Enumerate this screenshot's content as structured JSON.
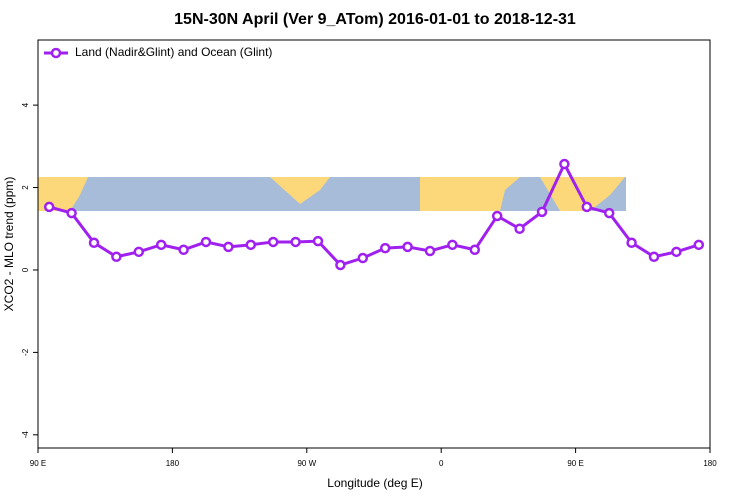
{
  "chart_data": {
    "type": "line",
    "title": "15N-30N April (Ver 9_ATom)   2016-01-01 to 2018-12-31",
    "x_label": "Longitude (deg E)",
    "y_label": "XCO2 - MLO trend (ppm)",
    "x": [
      97.5,
      112.5,
      127.5,
      142.5,
      157.5,
      172.5,
      187.5,
      202.5,
      217.5,
      232.5,
      247.5,
      262.5,
      277.5,
      292.5,
      307.5,
      322.5,
      337.5,
      352.5,
      367.5,
      382.5,
      397.5,
      412.5,
      427.5,
      442.5,
      457.5,
      472.5,
      487.5,
      502.5,
      517.5,
      532.5
    ],
    "series": [
      {
        "name": "Land (Nadir&Glint) and Ocean (Glint)",
        "color": "#a020f0",
        "values": [
          1.53,
          1.38,
          0.66,
          0.32,
          0.44,
          0.61,
          0.49,
          0.68,
          0.56,
          0.61,
          0.68,
          0.68,
          0.7,
          0.12,
          0.29,
          0.53,
          0.56,
          0.46,
          0.61,
          0.49,
          1.31,
          1.0,
          1.41,
          2.57,
          1.53,
          1.38,
          0.66,
          0.32,
          0.44,
          0.61
        ]
      }
    ],
    "xlim": [
      90,
      540
    ],
    "xticks": [
      {
        "value": 90,
        "label": "90 E"
      },
      180,
      {
        "value": 270,
        "label": "90 W"
      },
      {
        "value": 360,
        "label": "0"
      },
      {
        "value": 450,
        "label": "90 E"
      },
      {
        "value": 540,
        "label": "180"
      }
    ],
    "ylim": [
      -4.32,
      5.58
    ],
    "yticks": [
      -4,
      -2,
      0,
      2,
      4
    ],
    "legend": "top-left"
  }
}
